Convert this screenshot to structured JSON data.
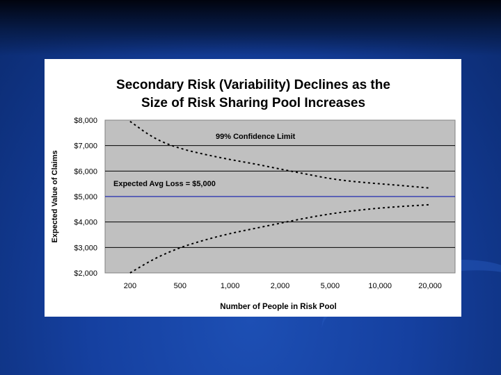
{
  "chart_data": {
    "type": "line",
    "title_lines": [
      "Secondary Risk (Variability) Declines as the",
      "Size of Risk Sharing Pool Increases"
    ],
    "xlabel": "Number of People in Risk Pool",
    "ylabel": "Expected Value of Claims",
    "categories": [
      "200",
      "500",
      "1,000",
      "2,000",
      "5,000",
      "10,000",
      "20,000"
    ],
    "y_ticks": [
      "$8,000",
      "$7,000",
      "$6,000",
      "$5,000",
      "$4,000",
      "$3,000",
      "$2,000"
    ],
    "ylim": [
      2000,
      8000
    ],
    "grid": true,
    "series": [
      {
        "name": "99% Confidence Limit",
        "style": "dashed",
        "x": [
          0,
          0.5,
          1,
          1.5,
          2,
          2.5,
          3,
          3.5,
          4,
          4.5,
          5,
          5.5,
          6
        ],
        "values": [
          7950,
          7250,
          6880,
          6650,
          6450,
          6280,
          6080,
          5890,
          5700,
          5580,
          5500,
          5420,
          5330
        ]
      },
      {
        "name": "",
        "style": "dashed",
        "x": [
          0,
          0.5,
          1,
          1.5,
          2,
          2.5,
          3,
          3.5,
          4,
          4.5,
          5,
          5.5,
          6
        ],
        "values": [
          2000,
          2580,
          3000,
          3300,
          3550,
          3750,
          3950,
          4150,
          4320,
          4450,
          4550,
          4620,
          4680
        ]
      },
      {
        "name": "Expected Avg Loss = $5,000",
        "style": "solid",
        "color": "#1f2bb0",
        "x": [
          -0.5,
          6.5
        ],
        "values": [
          5000,
          5000
        ]
      }
    ],
    "plot_bg": "#c0c0c0"
  }
}
